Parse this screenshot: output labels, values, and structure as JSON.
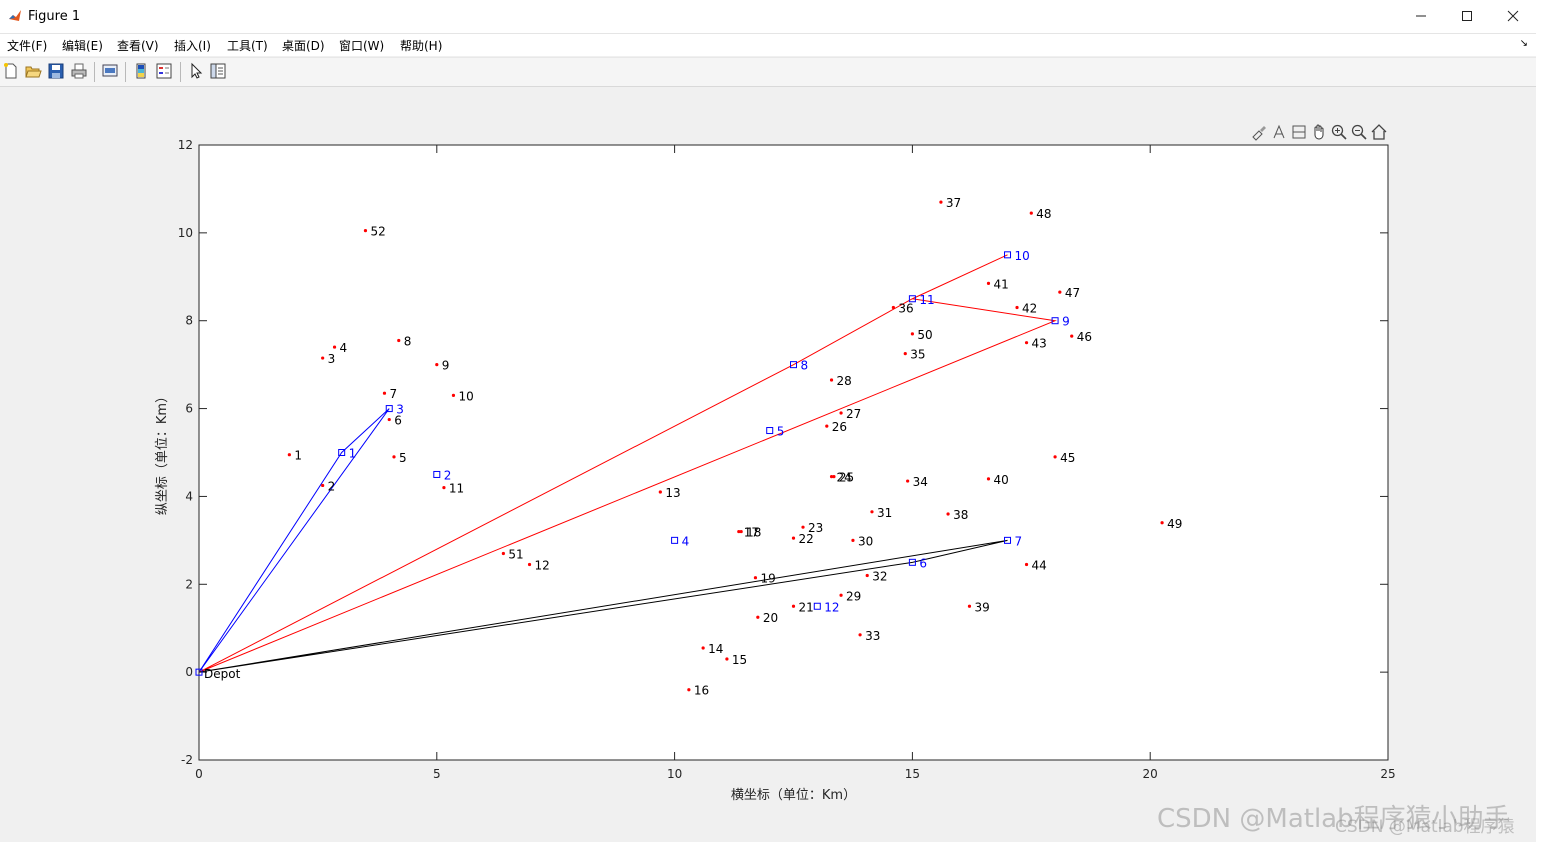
{
  "window": {
    "title": "Figure 1"
  },
  "menu": [
    "文件(F)",
    "编辑(E)",
    "查看(V)",
    "插入(I)",
    "工具(T)",
    "桌面(D)",
    "窗口(W)",
    "帮助(H)"
  ],
  "toolbar": [
    "new-figure-icon",
    "open-file-icon",
    "save-icon",
    "print-icon",
    "print-preview-icon",
    "colorbar-icon",
    "legend-icon",
    "pointer-icon",
    "property-editor-icon"
  ],
  "axes_toolbar": [
    "brush-icon",
    "data-tips-icon",
    "rotate-icon",
    "pan-icon",
    "zoom-in-icon",
    "zoom-out-icon",
    "home-icon"
  ],
  "watermark": "CSDN @Matlab程序猿小助手",
  "watermark_small": "CSDN @Matlab程序猿",
  "colors": {
    "customer": "#ff0000",
    "station": "#0000ff",
    "route_blue": "#0000ff",
    "route_red": "#ff0000",
    "route_black": "#000000",
    "label": "#000000",
    "station_label": "#0000ff"
  },
  "chart_data": {
    "type": "scatter",
    "xlabel": "横坐标（单位：Km）",
    "ylabel": "纵坐标（单位：Km）",
    "xlim": [
      0,
      25
    ],
    "ylim": [
      -2,
      12
    ],
    "xticks": [
      0,
      5,
      10,
      15,
      20,
      25
    ],
    "yticks": [
      -2,
      0,
      2,
      4,
      6,
      8,
      10,
      12
    ],
    "depot": {
      "label": "Depot",
      "x": 0,
      "y": 0
    },
    "customers": [
      {
        "id": "1",
        "x": 1.9,
        "y": 4.95
      },
      {
        "id": "2",
        "x": 2.6,
        "y": 4.25
      },
      {
        "id": "3",
        "x": 2.6,
        "y": 7.15
      },
      {
        "id": "4",
        "x": 2.85,
        "y": 7.4
      },
      {
        "id": "5",
        "x": 4.1,
        "y": 4.9
      },
      {
        "id": "6",
        "x": 4.0,
        "y": 5.75
      },
      {
        "id": "7",
        "x": 3.9,
        "y": 6.35
      },
      {
        "id": "8",
        "x": 4.2,
        "y": 7.55
      },
      {
        "id": "9",
        "x": 5.0,
        "y": 7.0
      },
      {
        "id": "10",
        "x": 5.35,
        "y": 6.3
      },
      {
        "id": "11",
        "x": 5.15,
        "y": 4.2
      },
      {
        "id": "12",
        "x": 6.95,
        "y": 2.45
      },
      {
        "id": "13",
        "x": 9.7,
        "y": 4.1
      },
      {
        "id": "14",
        "x": 10.6,
        "y": 0.55
      },
      {
        "id": "15",
        "x": 11.1,
        "y": 0.3
      },
      {
        "id": "16",
        "x": 10.3,
        "y": -0.4
      },
      {
        "id": "17",
        "x": 11.35,
        "y": 3.2
      },
      {
        "id": "18",
        "x": 11.4,
        "y": 3.2
      },
      {
        "id": "19",
        "x": 11.7,
        "y": 2.15
      },
      {
        "id": "20",
        "x": 11.75,
        "y": 1.25
      },
      {
        "id": "21",
        "x": 12.5,
        "y": 1.5
      },
      {
        "id": "22",
        "x": 12.5,
        "y": 3.05
      },
      {
        "id": "23",
        "x": 12.7,
        "y": 3.3
      },
      {
        "id": "24",
        "x": 13.3,
        "y": 4.45
      },
      {
        "id": "25",
        "x": 13.35,
        "y": 4.45
      },
      {
        "id": "26",
        "x": 13.2,
        "y": 5.6
      },
      {
        "id": "27",
        "x": 13.5,
        "y": 5.9
      },
      {
        "id": "28",
        "x": 13.3,
        "y": 6.65
      },
      {
        "id": "29",
        "x": 13.5,
        "y": 1.75
      },
      {
        "id": "30",
        "x": 13.75,
        "y": 3.0
      },
      {
        "id": "31",
        "x": 14.15,
        "y": 3.65
      },
      {
        "id": "32",
        "x": 14.05,
        "y": 2.2
      },
      {
        "id": "33",
        "x": 13.9,
        "y": 0.85
      },
      {
        "id": "34",
        "x": 14.9,
        "y": 4.35
      },
      {
        "id": "35",
        "x": 14.85,
        "y": 7.25
      },
      {
        "id": "36",
        "x": 14.6,
        "y": 8.3
      },
      {
        "id": "37",
        "x": 15.6,
        "y": 10.7
      },
      {
        "id": "38",
        "x": 15.75,
        "y": 3.6
      },
      {
        "id": "39",
        "x": 16.2,
        "y": 1.5
      },
      {
        "id": "40",
        "x": 16.6,
        "y": 4.4
      },
      {
        "id": "41",
        "x": 16.6,
        "y": 8.85
      },
      {
        "id": "42",
        "x": 17.2,
        "y": 8.3
      },
      {
        "id": "43",
        "x": 17.4,
        "y": 7.5
      },
      {
        "id": "44",
        "x": 17.4,
        "y": 2.45
      },
      {
        "id": "45",
        "x": 18.0,
        "y": 4.9
      },
      {
        "id": "46",
        "x": 18.35,
        "y": 7.65
      },
      {
        "id": "47",
        "x": 18.1,
        "y": 8.65
      },
      {
        "id": "48",
        "x": 17.5,
        "y": 10.45
      },
      {
        "id": "49",
        "x": 20.25,
        "y": 3.4
      },
      {
        "id": "50",
        "x": 15.0,
        "y": 7.7
      },
      {
        "id": "51",
        "x": 6.4,
        "y": 2.7
      },
      {
        "id": "52",
        "x": 3.5,
        "y": 10.05
      }
    ],
    "stations": [
      {
        "id": "1",
        "x": 3,
        "y": 5
      },
      {
        "id": "2",
        "x": 5,
        "y": 4.5
      },
      {
        "id": "3",
        "x": 4,
        "y": 6
      },
      {
        "id": "4",
        "x": 10,
        "y": 3
      },
      {
        "id": "5",
        "x": 12,
        "y": 5.5
      },
      {
        "id": "6",
        "x": 15,
        "y": 2.5
      },
      {
        "id": "7",
        "x": 17,
        "y": 3
      },
      {
        "id": "8",
        "x": 12.5,
        "y": 7
      },
      {
        "id": "9",
        "x": 18,
        "y": 8
      },
      {
        "id": "10",
        "x": 17,
        "y": 9.5
      },
      {
        "id": "11",
        "x": 15,
        "y": 8.5
      },
      {
        "id": "12",
        "x": 13,
        "y": 1.5
      }
    ],
    "routes": [
      {
        "color": "blue",
        "points": [
          [
            0,
            0
          ],
          [
            3,
            5
          ],
          [
            4,
            6
          ],
          [
            0,
            0
          ]
        ]
      },
      {
        "color": "red",
        "points": [
          [
            0,
            0
          ],
          [
            12.5,
            7
          ],
          [
            15,
            8.5
          ],
          [
            17,
            9.5
          ],
          [
            15,
            8.5
          ],
          [
            18,
            8
          ],
          [
            0,
            0
          ]
        ]
      },
      {
        "color": "black",
        "points": [
          [
            0,
            0
          ],
          [
            15,
            2.5
          ],
          [
            17,
            3
          ],
          [
            0,
            0
          ]
        ]
      }
    ]
  }
}
